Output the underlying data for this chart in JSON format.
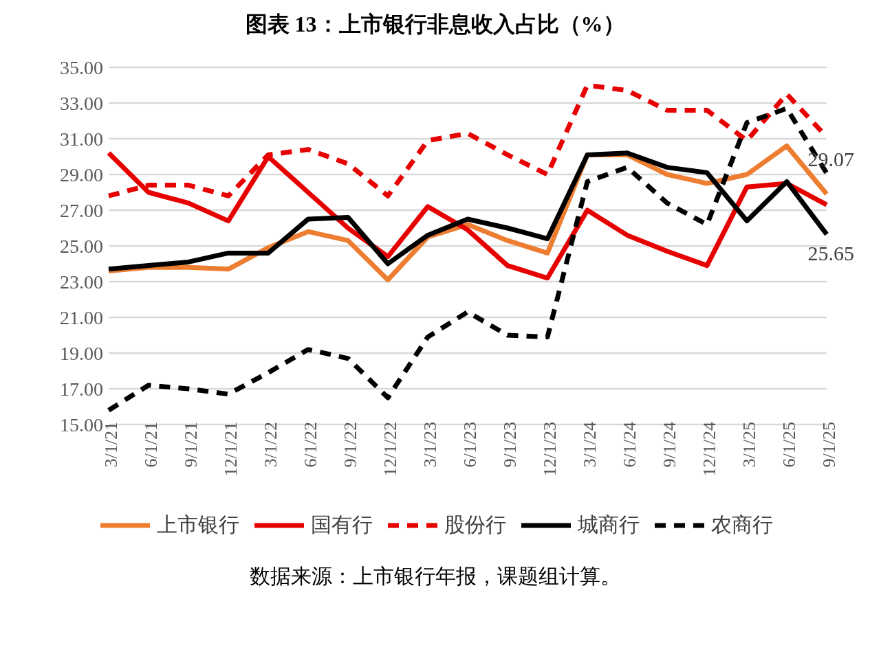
{
  "chart_data": {
    "type": "line",
    "title": "图表 13：上市银行非息收入占比（%）",
    "categories": [
      "3/1/21",
      "6/1/21",
      "9/1/21",
      "12/1/21",
      "3/1/22",
      "6/1/22",
      "9/1/22",
      "12/1/22",
      "3/1/23",
      "6/1/23",
      "9/1/23",
      "12/1/23",
      "3/1/24",
      "6/1/24",
      "9/1/24",
      "12/1/24",
      "3/1/25",
      "6/1/25",
      "9/1/25"
    ],
    "series": [
      {
        "name": "上市银行",
        "color": "#ed7d31",
        "line_style": "solid",
        "values": [
          23.6,
          23.8,
          23.8,
          23.7,
          24.9,
          25.8,
          25.3,
          23.1,
          25.5,
          26.2,
          25.3,
          24.6,
          30.1,
          30.1,
          29.0,
          28.5,
          29.0,
          30.6,
          27.9
        ]
      },
      {
        "name": "国有行",
        "color": "#e60000",
        "line_style": "solid",
        "values": [
          30.2,
          28.0,
          27.4,
          26.4,
          30.0,
          28.0,
          26.0,
          24.4,
          27.2,
          25.9,
          23.9,
          23.2,
          27.0,
          25.6,
          24.7,
          23.9,
          28.3,
          28.5,
          27.3
        ]
      },
      {
        "name": "股份行",
        "color": "#e60000",
        "line_style": "dashed",
        "values": [
          27.8,
          28.4,
          28.4,
          27.8,
          30.1,
          30.4,
          29.6,
          27.8,
          30.9,
          31.3,
          30.1,
          29.0,
          34.0,
          33.7,
          32.6,
          32.6,
          30.9,
          33.5,
          31.1
        ]
      },
      {
        "name": "城商行",
        "color": "#000000",
        "line_style": "solid",
        "values": [
          23.7,
          23.9,
          24.1,
          24.6,
          24.6,
          26.5,
          26.6,
          24.0,
          25.6,
          26.5,
          26.0,
          25.4,
          30.1,
          30.2,
          29.4,
          29.1,
          26.4,
          28.6,
          25.65
        ],
        "value_labels": [
          null,
          null,
          null,
          null,
          null,
          null,
          null,
          null,
          null,
          null,
          null,
          null,
          null,
          null,
          null,
          null,
          null,
          null,
          "25.65"
        ]
      },
      {
        "name": "农商行",
        "color": "#000000",
        "line_style": "dashed",
        "values": [
          15.8,
          17.2,
          17.0,
          16.7,
          17.9,
          19.2,
          18.7,
          16.5,
          19.9,
          21.3,
          20.0,
          19.9,
          28.6,
          29.4,
          27.4,
          26.2,
          31.9,
          32.7,
          29.07
        ],
        "value_labels": [
          null,
          null,
          null,
          null,
          null,
          null,
          null,
          null,
          null,
          null,
          null,
          null,
          null,
          null,
          null,
          null,
          null,
          null,
          "29.07"
        ]
      }
    ],
    "ylim": [
      15,
      35
    ],
    "yticks": [
      {
        "value": 15,
        "label": "15.00"
      },
      {
        "value": 17,
        "label": "17.00"
      },
      {
        "value": 19,
        "label": "19.00"
      },
      {
        "value": 21,
        "label": "21.00"
      },
      {
        "value": 23,
        "label": "23.00"
      },
      {
        "value": 25,
        "label": "25.00"
      },
      {
        "value": 27,
        "label": "27.00"
      },
      {
        "value": 29,
        "label": "29.00"
      },
      {
        "value": 31,
        "label": "31.00"
      },
      {
        "value": 33,
        "label": "33.00"
      },
      {
        "value": 35,
        "label": "35.00"
      }
    ],
    "grid": "y",
    "legend": "bottom",
    "marker": "none",
    "annotations": [
      "数据来源：上市银行年报，课题组计算。"
    ]
  }
}
